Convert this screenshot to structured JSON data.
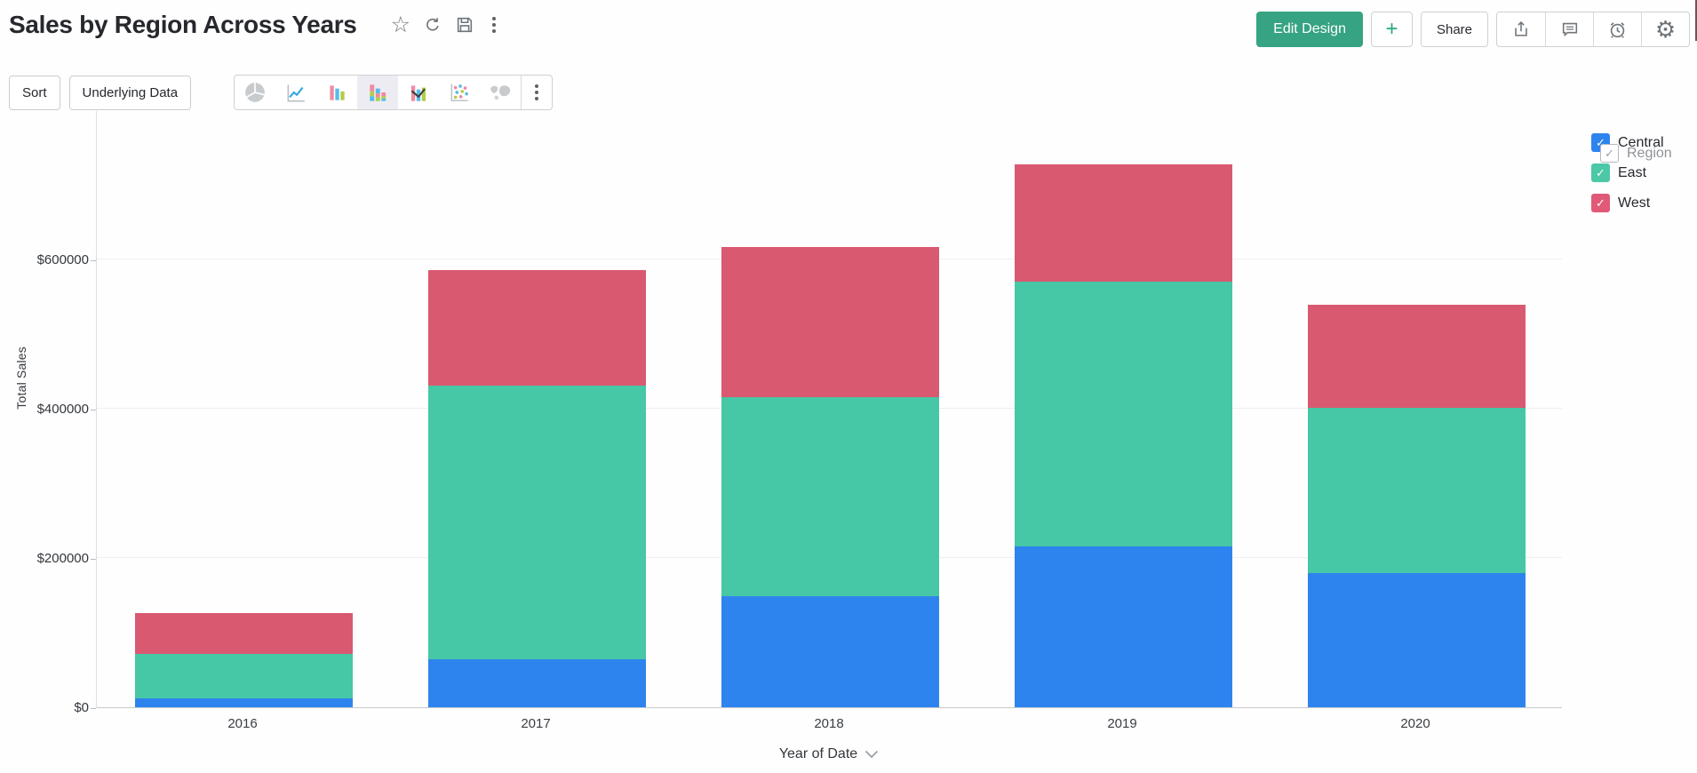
{
  "header": {
    "title": "Sales by Region Across Years",
    "edit_design_label": "Edit Design",
    "add_label": "+",
    "share_label": "Share",
    "title_action_icons": [
      "star-icon",
      "refresh-icon",
      "save-icon",
      "more-vertical-icon"
    ],
    "right_action_icons": [
      "export-icon",
      "comment-icon",
      "alarm-icon",
      "settings-gear-icon"
    ],
    "accent_color": "#36a383"
  },
  "toolbar": {
    "sort_label": "Sort",
    "underlying_data_label": "Underlying Data",
    "chart_types": [
      {
        "name": "pie-chart-icon",
        "selected": false
      },
      {
        "name": "line-chart-icon",
        "selected": false
      },
      {
        "name": "bar-chart-icon",
        "selected": false
      },
      {
        "name": "stacked-bar-chart-icon",
        "selected": true
      },
      {
        "name": "combo-chart-icon",
        "selected": false
      },
      {
        "name": "scatter-chart-icon",
        "selected": false
      },
      {
        "name": "map-chart-icon",
        "selected": false
      }
    ]
  },
  "legend": {
    "title": "Region",
    "items": [
      {
        "label": "Central",
        "color": "#2e84ee",
        "checked": true
      },
      {
        "label": "East",
        "color": "#4cc8a6",
        "checked": true
      },
      {
        "label": "West",
        "color": "#e05a78",
        "checked": true
      }
    ]
  },
  "chart_data": {
    "type": "bar",
    "stacked": true,
    "title": "Sales by Region Across Years",
    "xlabel": "Year of Date",
    "ylabel": "Total Sales",
    "categories": [
      "2016",
      "2017",
      "2018",
      "2019",
      "2020"
    ],
    "series": [
      {
        "name": "Central",
        "color": "#2e84ee",
        "values": [
          12000,
          64000,
          149000,
          216000,
          180000
        ]
      },
      {
        "name": "East",
        "color": "#46c7a5",
        "values": [
          60000,
          367000,
          267000,
          355000,
          222000
        ]
      },
      {
        "name": "West",
        "color": "#d95971",
        "values": [
          55000,
          155000,
          201000,
          157000,
          138000
        ]
      }
    ],
    "totals": [
      127000,
      586000,
      617000,
      728000,
      540000
    ],
    "ylim": [
      0,
      740000
    ],
    "yticks": [
      {
        "label": "$0",
        "value": 0
      },
      {
        "label": "$200000",
        "value": 200000
      },
      {
        "label": "$400000",
        "value": 400000
      },
      {
        "label": "$600000",
        "value": 600000
      }
    ],
    "grid": true,
    "legend_position": "right"
  }
}
